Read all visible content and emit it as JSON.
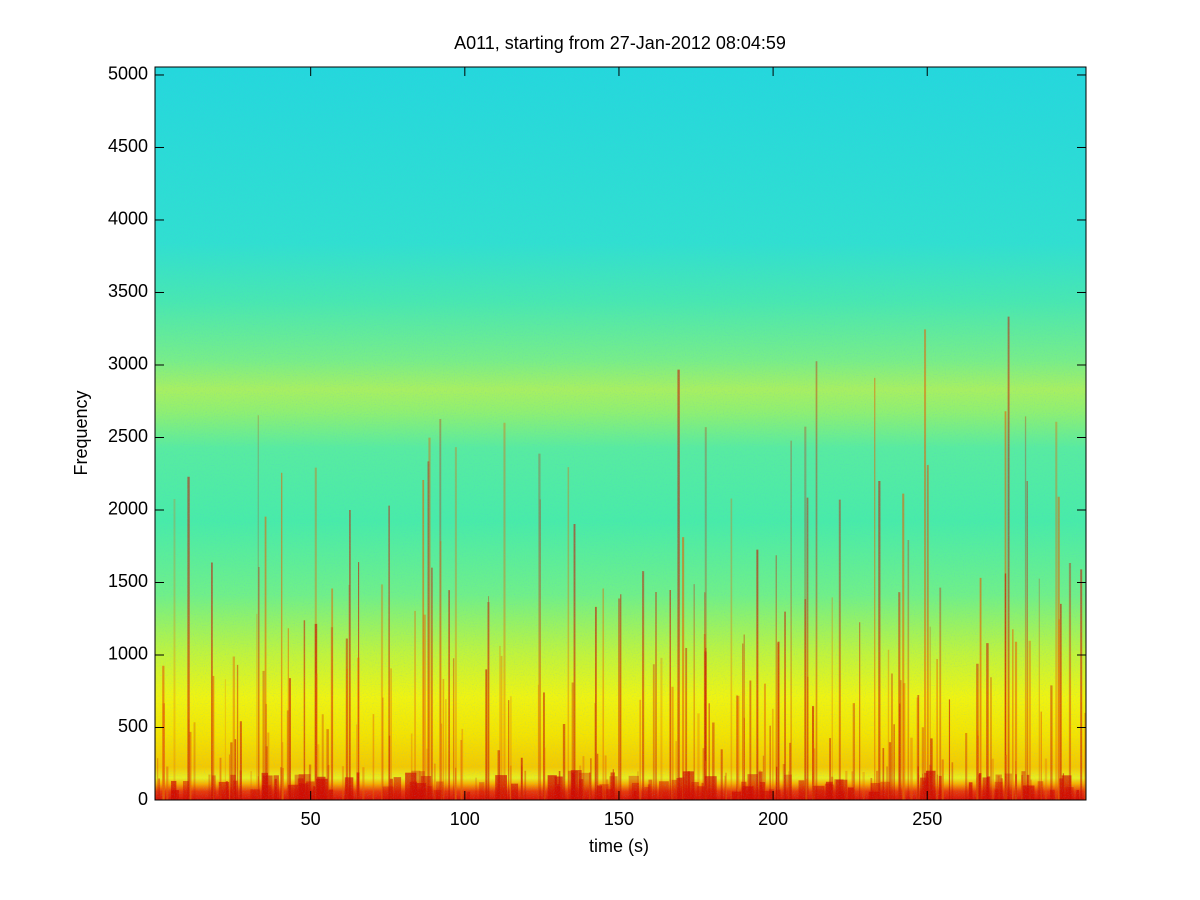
{
  "chart_data": {
    "type": "spectrogram",
    "title": "A011, starting from 27-Jan-2012 08:04:59",
    "xlabel": "time (s)",
    "ylabel": "Frequency",
    "xlim": [
      -0.5,
      301.5
    ],
    "xticks": [
      50,
      100,
      150,
      200,
      250
    ],
    "ylim": [
      0,
      5055
    ],
    "yticks": [
      0,
      500,
      1000,
      1500,
      2000,
      2500,
      3000,
      3500,
      4000,
      4500,
      5000
    ]
  }
}
